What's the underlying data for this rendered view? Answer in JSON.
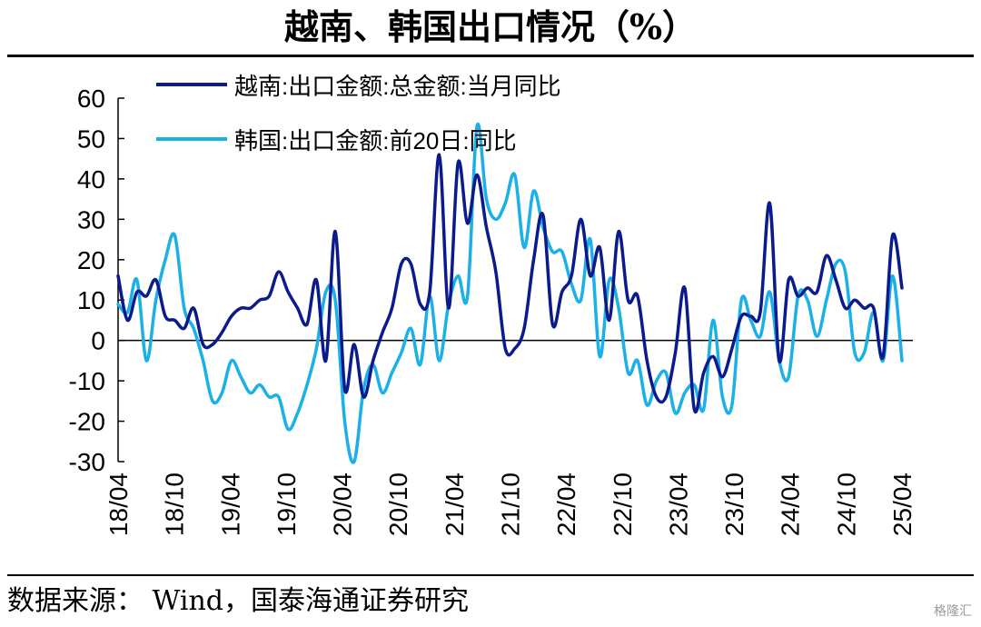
{
  "title": "越南、韩国出口情况（%）",
  "source": "数据来源： Wind，国泰海通证券研究",
  "watermark": "格隆汇",
  "chart_data": {
    "type": "line",
    "y_ticks": [
      60,
      50,
      40,
      30,
      20,
      10,
      0,
      -10,
      -20,
      -30
    ],
    "ylim": [
      -30,
      60
    ],
    "x_ticks": [
      "18/04",
      "18/10",
      "19/04",
      "19/10",
      "20/04",
      "20/10",
      "21/04",
      "21/10",
      "22/04",
      "22/10",
      "23/04",
      "23/10",
      "24/04",
      "24/10",
      "25/04"
    ],
    "x_start": "2018-04",
    "x_end": "2025-04",
    "grid": false,
    "legend_position": "top-left",
    "series": [
      {
        "name": "越南:出口金额:总金额:当月同比",
        "color": "#0b1a8c",
        "values": [
          16,
          5,
          12,
          11,
          15,
          6,
          5,
          3,
          8,
          -1,
          -1,
          2,
          6,
          8,
          8,
          10,
          11,
          17,
          12,
          8,
          4,
          15,
          -5,
          27,
          -12,
          -1,
          -14,
          -5,
          2,
          8,
          19,
          19,
          9,
          12,
          46,
          8,
          44,
          29,
          41,
          28,
          17,
          -2,
          -2,
          3,
          20,
          31,
          4,
          12,
          16,
          30,
          16,
          23,
          5,
          27,
          10,
          11,
          -5,
          -14,
          -14,
          -3,
          13,
          -17,
          -8,
          -4,
          -9,
          -2,
          6,
          6,
          7,
          34,
          -5,
          15,
          11,
          13,
          12,
          21,
          15,
          8,
          10,
          8,
          8,
          -4,
          26,
          13
        ]
      },
      {
        "name": "韩国:出口金额:前20日:同比",
        "color": "#1ab0e8",
        "values": [
          9,
          7,
          15,
          -5,
          10,
          20,
          26,
          8,
          3,
          -5,
          -15,
          -13,
          -5,
          -9,
          -13,
          -11,
          -14,
          -14,
          -22,
          -18,
          -11,
          -2,
          12,
          10,
          -20,
          -30,
          -12,
          -6,
          -13,
          -8,
          -3,
          3,
          -6,
          11,
          -5,
          9,
          16,
          11,
          53,
          35,
          30,
          34,
          41,
          23,
          37,
          28,
          22,
          22,
          14,
          10,
          25,
          -4,
          15,
          8,
          -8,
          -5,
          -16,
          -10,
          -8,
          -18,
          -13,
          -11,
          -17,
          5,
          -14,
          -16,
          10,
          5,
          1,
          12,
          -5,
          -9,
          11,
          10,
          1,
          10,
          19,
          17,
          -3,
          -3,
          7,
          -5,
          16,
          -5
        ]
      }
    ]
  }
}
